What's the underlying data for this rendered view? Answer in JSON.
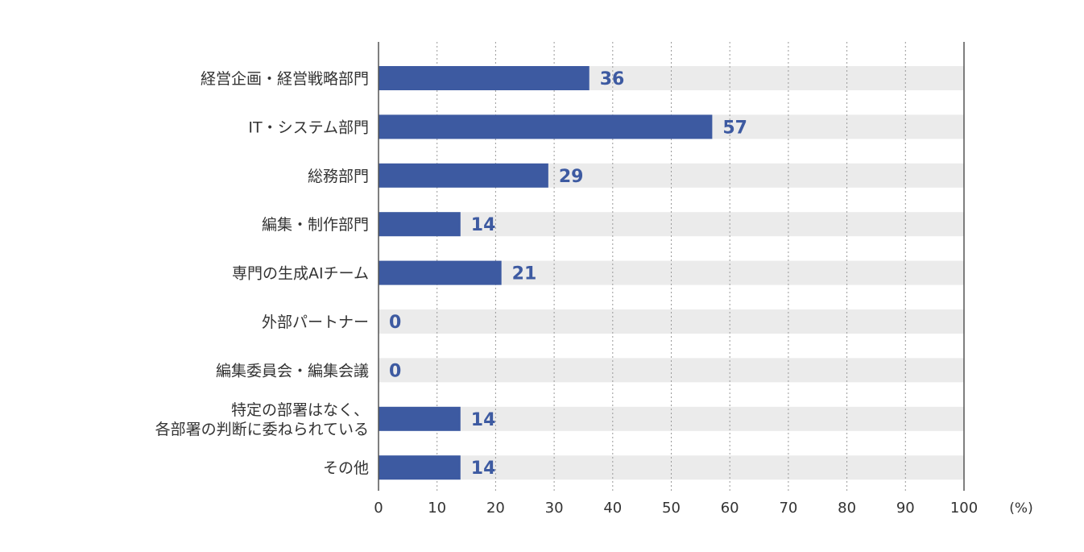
{
  "chart_data": {
    "type": "bar",
    "orientation": "horizontal",
    "categories": [
      [
        "経営企画・経営戦略部門"
      ],
      [
        "IT・システム部門"
      ],
      [
        "総務部門"
      ],
      [
        "編集・制作部門"
      ],
      [
        "専門の生成AIチーム"
      ],
      [
        "外部パートナー"
      ],
      [
        "編集委員会・編集会議"
      ],
      [
        "特定の部署はなく、",
        "各部署の判断に委ねられている"
      ],
      [
        "その他"
      ]
    ],
    "values": [
      36,
      57,
      29,
      14,
      21,
      0,
      0,
      14,
      14
    ],
    "value_labels": [
      "36",
      "57",
      "29",
      "14",
      "21",
      "0",
      "0",
      "14",
      "14"
    ],
    "xlim": [
      0,
      100
    ],
    "x_ticks": [
      0,
      10,
      20,
      30,
      40,
      50,
      60,
      70,
      80,
      90,
      100
    ],
    "x_tick_labels": [
      "0",
      "10",
      "20",
      "30",
      "40",
      "50",
      "60",
      "70",
      "80",
      "90",
      "100"
    ],
    "unit": "(%)",
    "grid": "vertical-dotted",
    "colors": {
      "bar": "#3d5aa1",
      "track": "#ebebeb",
      "value_text": "#3d5aa1",
      "grid": "#9a9a9a",
      "axis": "#555555"
    }
  }
}
